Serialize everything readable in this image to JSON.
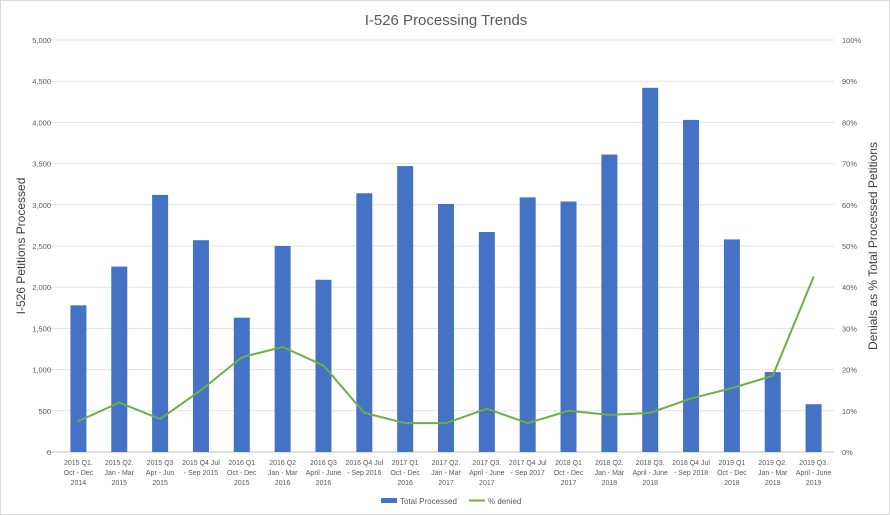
{
  "chart_data": {
    "type": "bar+line",
    "title": "I-526 Processing Trends",
    "ylabel": "I-526 Petitions Processed",
    "y2label": "Denials as % Total Processed Petitions",
    "ylim": [
      0,
      5000
    ],
    "y2lim": [
      0,
      100
    ],
    "yticks": [
      "0",
      "500",
      "1,000",
      "1,500",
      "2,000",
      "2,500",
      "3,000",
      "3,500",
      "4,000",
      "4,500",
      "5,000"
    ],
    "y2ticks": [
      "0%",
      "10%",
      "20%",
      "30%",
      "40%",
      "50%",
      "60%",
      "70%",
      "80%",
      "90%",
      "100%"
    ],
    "grid": true,
    "legend": "bottom",
    "categories": [
      [
        "2015 Q1.",
        "Oct - Dec",
        "2014"
      ],
      [
        "2015 Q2.",
        "Jan - Mar",
        "2015"
      ],
      [
        "2015 Q3",
        "Apr - Jun",
        "2015"
      ],
      [
        "2015 Q4 Jul",
        "- Sep 2015"
      ],
      [
        "2016 Q1",
        "Oct - Dec",
        "2015"
      ],
      [
        "2016 Q2",
        "Jan - Mar",
        "2016"
      ],
      [
        "2016 Q3",
        "April - June",
        "2016"
      ],
      [
        "2016 Q4 Jul",
        "- Sep 2016"
      ],
      [
        "2017 Q1",
        "Oct - Dec",
        "2016"
      ],
      [
        "2017 Q2.",
        "Jan - Mar",
        "2017"
      ],
      [
        "2017 Q3.",
        "April - June",
        "2017"
      ],
      [
        "2017 Q4 Jul",
        "- Sep 2017"
      ],
      [
        "2018 Q1",
        "Oct - Dec",
        "2017"
      ],
      [
        "2018 Q2.",
        "Jan - Mar",
        "2018"
      ],
      [
        "2018 Q3.",
        "April - June",
        "2018"
      ],
      [
        "2018 Q4 Jul",
        "- Sep 2018"
      ],
      [
        "2019  Q1",
        "Oct - Dec",
        "2018"
      ],
      [
        "2019 Q2.",
        "Jan - Mar",
        "2019"
      ],
      [
        "2019 Q3.",
        "April - June",
        "2019"
      ]
    ],
    "series": [
      {
        "name": "Total Processed",
        "type": "bar",
        "axis": "left",
        "color": "#4472c4",
        "values": [
          1780,
          2250,
          3120,
          2570,
          1630,
          2500,
          2090,
          3140,
          3470,
          3010,
          2670,
          3090,
          3040,
          3610,
          4420,
          4030,
          2580,
          970,
          580
        ]
      },
      {
        "name": "% denied",
        "type": "line",
        "axis": "right",
        "color": "#70ad47",
        "values": [
          7.5,
          12,
          8,
          15,
          23,
          25.5,
          21,
          9.5,
          7,
          7,
          10.5,
          7,
          10,
          9,
          9.5,
          13,
          15.5,
          18.5,
          42.5
        ]
      }
    ]
  }
}
